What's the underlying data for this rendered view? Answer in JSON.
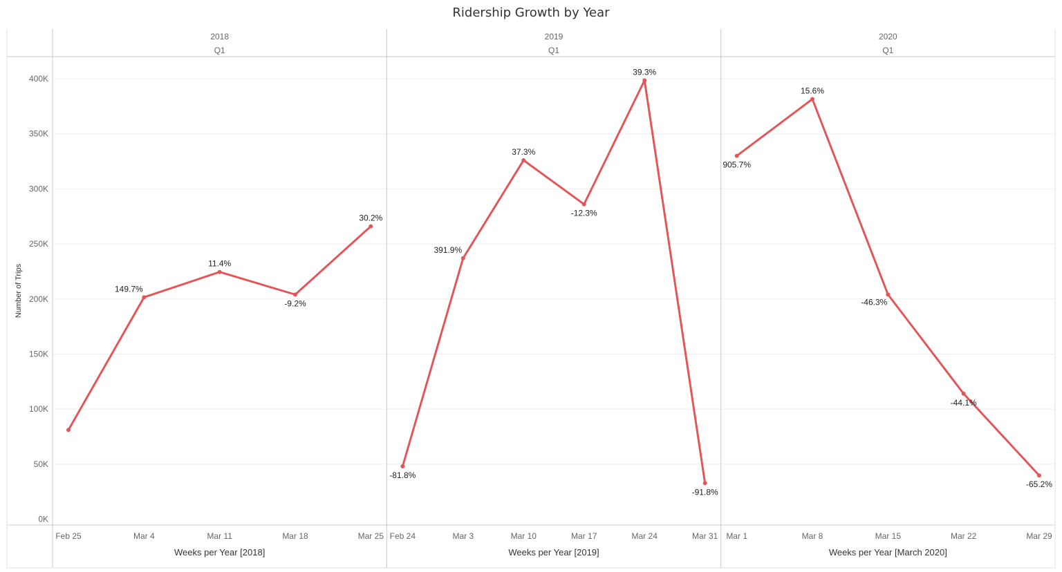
{
  "chart_data": {
    "type": "line",
    "title": "Ridership Growth by Year",
    "ylabel": "Number of Trips",
    "ylim": [
      0,
      420000
    ],
    "yticks": [
      0,
      50000,
      100000,
      150000,
      200000,
      250000,
      300000,
      350000,
      400000
    ],
    "ytick_labels": [
      "0K",
      "50K",
      "100K",
      "150K",
      "200K",
      "250K",
      "300K",
      "350K",
      "400K"
    ],
    "grid": true,
    "color": "#e15759",
    "panels": [
      {
        "year": "2018",
        "quarter": "Q1",
        "xlabel": "Weeks per Year [2018]",
        "categories": [
          "Feb 25",
          "Mar 4",
          "Mar 11",
          "Mar 18",
          "Mar 25"
        ],
        "values": [
          81000,
          201500,
          224500,
          204000,
          266000
        ],
        "labels": [
          "",
          "149.7%",
          "11.4%",
          "-9.2%",
          "30.2%"
        ],
        "label_pos": [
          "",
          "above-left",
          "above",
          "below",
          "above"
        ]
      },
      {
        "year": "2019",
        "quarter": "Q1",
        "xlabel": "Weeks per Year [2019]",
        "categories": [
          "Feb 24",
          "Mar 3",
          "Mar 10",
          "Mar 17",
          "Mar 24",
          "Mar 31"
        ],
        "values": [
          48000,
          237000,
          326000,
          286000,
          398500,
          32700
        ],
        "labels": [
          "-81.8%",
          "391.9%",
          "37.3%",
          "-12.3%",
          "39.3%",
          "-91.8%"
        ],
        "label_pos": [
          "below",
          "above-left",
          "above",
          "below",
          "above",
          "below"
        ]
      },
      {
        "year": "2020",
        "quarter": "Q1",
        "xlabel": "Weeks per Year [March 2020]",
        "categories": [
          "Mar 1",
          "Mar 8",
          "Mar 15",
          "Mar 22",
          "Mar 29"
        ],
        "values": [
          330000,
          381500,
          204000,
          114000,
          39700
        ],
        "labels": [
          "905.7%",
          "15.6%",
          "-46.3%",
          "-44.1%",
          "-65.2%"
        ],
        "label_pos": [
          "below",
          "above",
          "below-left",
          "below",
          "below"
        ]
      }
    ]
  }
}
